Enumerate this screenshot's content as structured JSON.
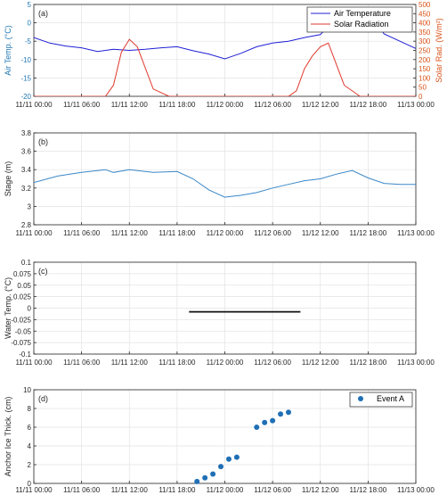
{
  "x_ticks": [
    "11/11 00:00",
    "11/11 06:00",
    "11/11 12:00",
    "11/11 18:00",
    "11/12 00:00",
    "11/12 06:00",
    "11/12 12:00",
    "11/12 18:00",
    "11/13 00:00"
  ],
  "colors": {
    "air": "#1f1fd6",
    "solar": "#e03a2e",
    "stage": "#3a87c8",
    "water": "#111111",
    "anchor": "#1f6fb5",
    "left_axis": "#1f77b4",
    "right_axis": "#d95319"
  },
  "chart_data": [
    {
      "type": "line",
      "panel_label": "(a)",
      "ylabel": "Air Temp. (°C)",
      "ylabel2": "Solar Rad. (W/m²)",
      "ylim": [
        -20,
        5
      ],
      "ylim2": [
        0,
        500
      ],
      "yticks": [
        "-20",
        "-15",
        "-10",
        "-5",
        "0",
        "5"
      ],
      "yticks2": [
        "0",
        "50",
        "100",
        "150",
        "200",
        "250",
        "300",
        "350",
        "400",
        "450",
        "500"
      ],
      "legend": [
        "Air Temperature",
        "Solar Radiation"
      ],
      "legend_position": "top-right",
      "series": [
        {
          "name": "Air Temperature",
          "axis": "left",
          "x": [
            0,
            2,
            4,
            6,
            8,
            10,
            12,
            14,
            16,
            18,
            20,
            22,
            24,
            26,
            28,
            30,
            32,
            34,
            36,
            38,
            40,
            41,
            42,
            44,
            46,
            48
          ],
          "y": [
            -4,
            -5.5,
            -6.3,
            -6.8,
            -7.8,
            -7.2,
            -7.5,
            -7.2,
            -6.8,
            -6.5,
            -7.6,
            -8.5,
            -9.8,
            -8.3,
            -6.5,
            -5.5,
            -5,
            -4,
            -3.2,
            1.5,
            3.8,
            4,
            3.5,
            -3,
            -5,
            -7
          ]
        },
        {
          "name": "Solar Radiation",
          "axis": "right",
          "x": [
            0,
            9,
            10,
            11,
            12,
            13,
            15,
            17,
            18,
            20,
            22,
            24,
            26,
            28,
            30,
            32,
            33,
            34,
            35,
            36,
            37,
            39,
            41,
            42,
            44,
            46,
            48
          ],
          "y": [
            0,
            0,
            60,
            240,
            310,
            270,
            40,
            0,
            0,
            0,
            0,
            0,
            0,
            0,
            0,
            0,
            30,
            150,
            220,
            270,
            290,
            60,
            0,
            0,
            0,
            0,
            0
          ]
        }
      ]
    },
    {
      "type": "line",
      "panel_label": "(b)",
      "ylabel": "Stage (m)",
      "ylim": [
        2.8,
        3.8
      ],
      "yticks": [
        "2.8",
        "3",
        "3.2",
        "3.4",
        "3.6",
        "3.8"
      ],
      "series": [
        {
          "name": "Stage",
          "x": [
            0,
            3,
            6,
            9,
            10,
            12,
            15,
            18,
            20,
            22,
            24,
            26,
            28,
            30,
            32,
            34,
            36,
            38,
            40,
            42,
            44,
            46,
            48
          ],
          "y": [
            3.26,
            3.33,
            3.37,
            3.4,
            3.37,
            3.4,
            3.37,
            3.38,
            3.3,
            3.18,
            3.1,
            3.12,
            3.15,
            3.2,
            3.24,
            3.28,
            3.3,
            3.35,
            3.39,
            3.31,
            3.25,
            3.24,
            3.24
          ]
        }
      ]
    },
    {
      "type": "line",
      "panel_label": "(c)",
      "ylabel": "Water Temp. (°C)",
      "ylim": [
        -0.1,
        0.1
      ],
      "yticks": [
        "-0.1",
        "-0.075",
        "-0.05",
        "-0.025",
        "0",
        "0.025",
        "0.05",
        "0.075",
        "0.1"
      ],
      "series": [
        {
          "name": "Water Temperature",
          "x": [
            19.5,
            33.5
          ],
          "y": [
            -0.008,
            -0.008
          ]
        }
      ]
    },
    {
      "type": "scatter",
      "panel_label": "(d)",
      "ylabel": "Anchor Ice Thick. (cm)",
      "ylim": [
        0,
        10
      ],
      "yticks": [
        "0",
        "2",
        "4",
        "6",
        "8",
        "10"
      ],
      "legend": [
        "Event A"
      ],
      "legend_position": "top-right",
      "series": [
        {
          "name": "Event A",
          "x": [
            20.5,
            21.5,
            22.5,
            23.5,
            24.5,
            25.5,
            28,
            29,
            30,
            31,
            32
          ],
          "y": [
            0.2,
            0.6,
            1.0,
            1.8,
            2.6,
            2.8,
            6.0,
            6.5,
            6.7,
            7.4,
            7.6
          ]
        }
      ]
    }
  ]
}
